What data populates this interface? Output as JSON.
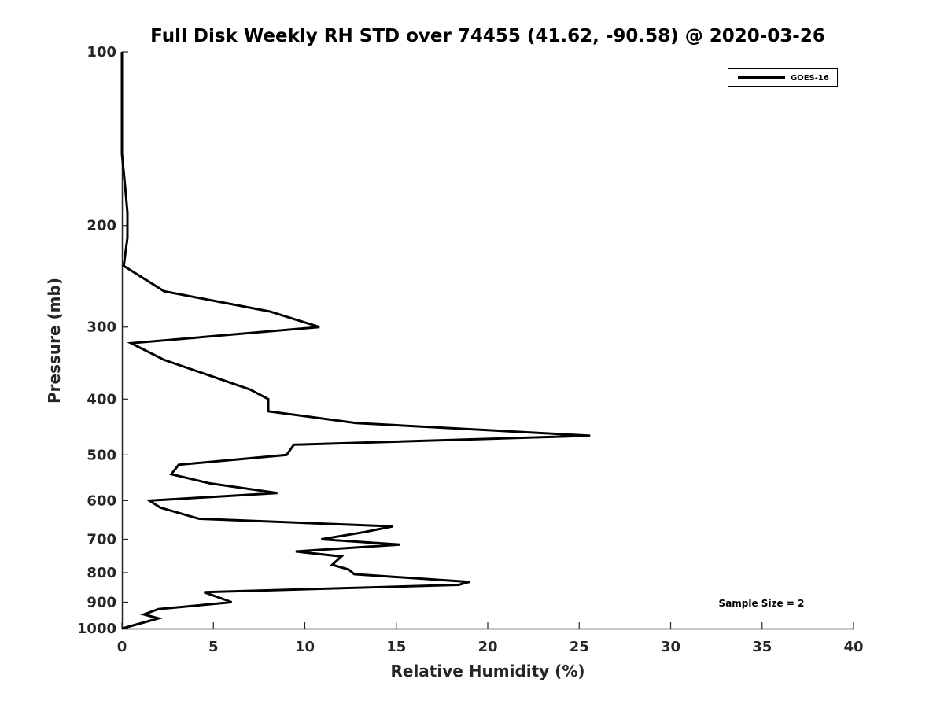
{
  "chart_data": {
    "type": "line",
    "title": "Full Disk Weekly RH STD over 74455 (41.62, -90.58) @ 2020-03-26",
    "xlabel": "Relative Humidity (%)",
    "ylabel": "Pressure (mb)",
    "xlim": [
      0,
      40
    ],
    "ylim": [
      1000,
      100
    ],
    "y_scale": "log",
    "grid": false,
    "legend_position": "top-right",
    "x_ticks": [
      "0",
      "5",
      "10",
      "15",
      "20",
      "25",
      "30",
      "35",
      "40"
    ],
    "y_ticks": [
      "100",
      "200",
      "300",
      "400",
      "500",
      "600",
      "700",
      "800",
      "900",
      "1000"
    ],
    "annotation": "Sample Size = 2",
    "series": [
      {
        "name": "GOES-16",
        "color": "#000000",
        "points": [
          [
            0,
            100
          ],
          [
            0,
            150
          ],
          [
            0.2,
            175
          ],
          [
            0.3,
            190
          ],
          [
            0.3,
            210
          ],
          [
            0.1,
            235
          ],
          [
            2.3,
            260
          ],
          [
            8.1,
            282
          ],
          [
            10.8,
            300
          ],
          [
            0.5,
            320
          ],
          [
            2.3,
            342
          ],
          [
            4.9,
            365
          ],
          [
            7.0,
            385
          ],
          [
            8.0,
            400
          ],
          [
            8.0,
            420
          ],
          [
            12.8,
            440
          ],
          [
            25.6,
            463
          ],
          [
            9.4,
            480
          ],
          [
            9.0,
            500
          ],
          [
            3.1,
            520
          ],
          [
            2.7,
            540
          ],
          [
            4.8,
            560
          ],
          [
            8.5,
            582
          ],
          [
            1.5,
            600
          ],
          [
            2.1,
            617
          ],
          [
            4.2,
            645
          ],
          [
            14.8,
            665
          ],
          [
            13.3,
            680
          ],
          [
            10.9,
            700
          ],
          [
            15.2,
            715
          ],
          [
            9.5,
            735
          ],
          [
            12.0,
            750
          ],
          [
            11.5,
            775
          ],
          [
            12.4,
            790
          ],
          [
            12.7,
            805
          ],
          [
            19.0,
            830
          ],
          [
            18.4,
            840
          ],
          [
            4.5,
            865
          ],
          [
            6.0,
            900
          ],
          [
            2.0,
            925
          ],
          [
            1.2,
            945
          ],
          [
            2.0,
            960
          ],
          [
            0,
            1000
          ]
        ]
      }
    ]
  }
}
